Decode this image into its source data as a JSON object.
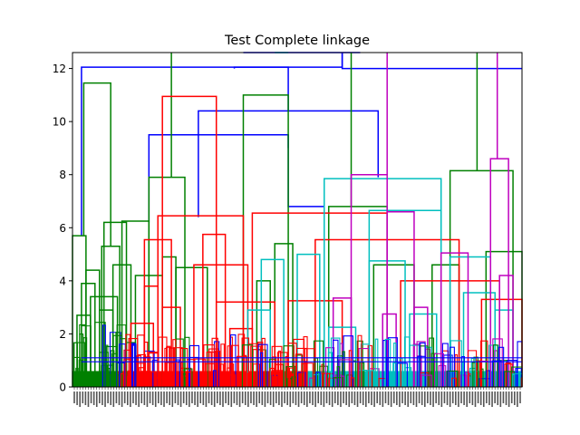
{
  "chart_data": {
    "type": "dendrogram",
    "title": "Test Complete linkage",
    "xlabel": "",
    "ylabel": "",
    "ylim": [
      0,
      12.6
    ],
    "y_ticks": [
      0,
      2,
      4,
      6,
      8,
      10,
      12
    ],
    "y_tick_labels": [
      "0",
      "2",
      "4",
      "6",
      "8",
      "10",
      "12"
    ],
    "grid": false,
    "legend": "none",
    "leaf_labels_note": "Leaf labels are rendered vertically and are too small to read individually.",
    "leaf_band_colors": [
      "#008000",
      "#ff0000",
      "#00bfbf"
    ],
    "colors": {
      "blue": "#0000ff",
      "green": "#008000",
      "red": "#ff0000",
      "cyan": "#00bfbf",
      "magenta": "#bf00bf"
    },
    "links": [
      {
        "x1": 0.02,
        "x2": 0.6,
        "h1": 5.7,
        "h2": 12.6,
        "top": 12.05,
        "color": "blue"
      },
      {
        "x1": 0.6,
        "x2": 1.0,
        "h1": 12.6,
        "h2": 12.0,
        "top": 12.0,
        "color": "blue"
      },
      {
        "x1": 0.38,
        "x2": 0.64,
        "h1": 12.6,
        "h2": 12.6,
        "top": 12.6,
        "color": "blue"
      },
      {
        "x1": 0.17,
        "x2": 0.48,
        "h1": 6.2,
        "h2": 9.0,
        "top": 9.5,
        "color": "blue"
      },
      {
        "x1": 0.28,
        "x2": 0.68,
        "h1": 6.4,
        "h2": 7.9,
        "top": 10.4,
        "color": "blue"
      },
      {
        "x1": 0.36,
        "x2": 0.48,
        "h1": 12.0,
        "h2": 10.4,
        "top": 12.05,
        "color": "blue"
      },
      {
        "x1": 0.48,
        "x2": 0.56,
        "h1": 9.5,
        "h2": 6.8,
        "top": 6.8,
        "color": "blue"
      },
      {
        "x1": 0.0,
        "x2": 0.03,
        "h1": 0.0,
        "h2": 0.0,
        "top": 5.7,
        "color": "green"
      },
      {
        "x1": 0.025,
        "x2": 0.085,
        "h1": 5.7,
        "h2": 5.3,
        "top": 11.45,
        "color": "green"
      },
      {
        "x1": 0.065,
        "x2": 0.105,
        "h1": 0.0,
        "h2": 0.0,
        "top": 5.3,
        "color": "green"
      },
      {
        "x1": 0.03,
        "x2": 0.06,
        "h1": 0.0,
        "h2": 0.0,
        "top": 4.4,
        "color": "green"
      },
      {
        "x1": 0.02,
        "x2": 0.05,
        "h1": 0.0,
        "h2": 0.0,
        "top": 3.9,
        "color": "green"
      },
      {
        "x1": 0.04,
        "x2": 0.1,
        "h1": 0.0,
        "h2": 0.0,
        "top": 3.4,
        "color": "green"
      },
      {
        "x1": 0.01,
        "x2": 0.04,
        "h1": 0.0,
        "h2": 0.0,
        "top": 2.7,
        "color": "green"
      },
      {
        "x1": 0.06,
        "x2": 0.09,
        "h1": 0.0,
        "h2": 0.0,
        "top": 2.9,
        "color": "green"
      },
      {
        "x1": 0.07,
        "x2": 0.12,
        "h1": 0.0,
        "h2": 0.0,
        "top": 6.2,
        "color": "green"
      },
      {
        "x1": 0.09,
        "x2": 0.13,
        "h1": 0.0,
        "h2": 0.0,
        "top": 4.6,
        "color": "green"
      },
      {
        "x1": 0.11,
        "x2": 0.17,
        "h1": 0.0,
        "h2": 0.0,
        "top": 6.25,
        "color": "green"
      },
      {
        "x1": 0.14,
        "x2": 0.2,
        "h1": 0.0,
        "h2": 0.0,
        "top": 4.2,
        "color": "green"
      },
      {
        "x1": 0.17,
        "x2": 0.25,
        "h1": 0.0,
        "h2": 0.0,
        "top": 7.9,
        "color": "green"
      },
      {
        "x1": 0.2,
        "x2": 0.23,
        "h1": 0.0,
        "h2": 0.0,
        "top": 4.9,
        "color": "green"
      },
      {
        "x1": 0.23,
        "x2": 0.3,
        "h1": 0.0,
        "h2": 0.0,
        "top": 4.5,
        "color": "green"
      },
      {
        "x1": 0.22,
        "x2": 0.22,
        "h1": 7.9,
        "h2": 12.6,
        "top": 12.6,
        "color": "green"
      },
      {
        "x1": 0.38,
        "x2": 0.48,
        "h1": 0.0,
        "h2": 0.0,
        "top": 11.0,
        "color": "green"
      },
      {
        "x1": 0.45,
        "x2": 0.49,
        "h1": 0.0,
        "h2": 0.0,
        "top": 5.4,
        "color": "green"
      },
      {
        "x1": 0.41,
        "x2": 0.44,
        "h1": 0.0,
        "h2": 0.0,
        "top": 4.0,
        "color": "green"
      },
      {
        "x1": 0.62,
        "x2": 0.62,
        "h1": 6.8,
        "h2": 12.6,
        "top": 12.6,
        "color": "green"
      },
      {
        "x1": 0.57,
        "x2": 0.7,
        "h1": 0.0,
        "h2": 0.0,
        "top": 6.8,
        "color": "green"
      },
      {
        "x1": 0.67,
        "x2": 0.76,
        "h1": 0.0,
        "h2": 0.0,
        "top": 4.6,
        "color": "green"
      },
      {
        "x1": 0.84,
        "x2": 0.98,
        "h1": 0.0,
        "h2": 0.0,
        "top": 8.15,
        "color": "green"
      },
      {
        "x1": 0.92,
        "x2": 1.0,
        "h1": 0.0,
        "h2": 0.0,
        "top": 5.1,
        "color": "green"
      },
      {
        "x1": 0.9,
        "x2": 0.9,
        "h1": 8.15,
        "h2": 12.6,
        "top": 12.6,
        "color": "green"
      },
      {
        "x1": 0.8,
        "x2": 0.86,
        "h1": 0.0,
        "h2": 0.0,
        "top": 4.6,
        "color": "green"
      },
      {
        "x1": 0.2,
        "x2": 0.32,
        "h1": 0.0,
        "h2": 0.0,
        "top": 10.95,
        "color": "red"
      },
      {
        "x1": 0.16,
        "x2": 0.22,
        "h1": 0.0,
        "h2": 0.0,
        "top": 5.55,
        "color": "red"
      },
      {
        "x1": 0.19,
        "x2": 0.38,
        "h1": 0.0,
        "h2": 0.0,
        "top": 6.45,
        "color": "red"
      },
      {
        "x1": 0.29,
        "x2": 0.34,
        "h1": 0.0,
        "h2": 0.0,
        "top": 5.75,
        "color": "red"
      },
      {
        "x1": 0.27,
        "x2": 0.39,
        "h1": 0.0,
        "h2": 0.0,
        "top": 4.6,
        "color": "red"
      },
      {
        "x1": 0.16,
        "x2": 0.19,
        "h1": 0.0,
        "h2": 0.0,
        "top": 3.8,
        "color": "red"
      },
      {
        "x1": 0.13,
        "x2": 0.18,
        "h1": 0.0,
        "h2": 0.0,
        "top": 2.4,
        "color": "red"
      },
      {
        "x1": 0.2,
        "x2": 0.24,
        "h1": 0.0,
        "h2": 0.0,
        "top": 3.0,
        "color": "red"
      },
      {
        "x1": 0.32,
        "x2": 0.45,
        "h1": 0.0,
        "h2": 0.0,
        "top": 3.2,
        "color": "red"
      },
      {
        "x1": 0.4,
        "x2": 0.7,
        "h1": 0.0,
        "h2": 0.0,
        "top": 6.55,
        "color": "red"
      },
      {
        "x1": 0.54,
        "x2": 0.86,
        "h1": 0.0,
        "h2": 0.0,
        "top": 5.55,
        "color": "red"
      },
      {
        "x1": 0.48,
        "x2": 0.6,
        "h1": 0.0,
        "h2": 0.0,
        "top": 3.25,
        "color": "red"
      },
      {
        "x1": 0.73,
        "x2": 0.95,
        "h1": 0.0,
        "h2": 0.0,
        "top": 4.0,
        "color": "red"
      },
      {
        "x1": 0.91,
        "x2": 1.0,
        "h1": 0.0,
        "h2": 0.0,
        "top": 3.3,
        "color": "red"
      },
      {
        "x1": 0.35,
        "x2": 0.4,
        "h1": 0.0,
        "h2": 0.0,
        "top": 2.2,
        "color": "red"
      },
      {
        "x1": 0.45,
        "x2": 0.48,
        "h1": 12.6,
        "h2": 12.6,
        "top": 12.6,
        "color": "cyan"
      },
      {
        "x1": 0.56,
        "x2": 0.82,
        "h1": 0.0,
        "h2": 0.0,
        "top": 7.85,
        "color": "cyan"
      },
      {
        "x1": 0.66,
        "x2": 0.82,
        "h1": 0.0,
        "h2": 0.0,
        "top": 6.65,
        "color": "cyan"
      },
      {
        "x1": 0.42,
        "x2": 0.47,
        "h1": 0.0,
        "h2": 0.0,
        "top": 4.8,
        "color": "cyan"
      },
      {
        "x1": 0.5,
        "x2": 0.55,
        "h1": 0.0,
        "h2": 0.0,
        "top": 5.0,
        "color": "cyan"
      },
      {
        "x1": 0.66,
        "x2": 0.74,
        "h1": 0.0,
        "h2": 0.0,
        "top": 4.75,
        "color": "cyan"
      },
      {
        "x1": 0.75,
        "x2": 0.81,
        "h1": 0.0,
        "h2": 0.0,
        "top": 2.75,
        "color": "cyan"
      },
      {
        "x1": 0.84,
        "x2": 0.93,
        "h1": 0.0,
        "h2": 0.0,
        "top": 4.9,
        "color": "cyan"
      },
      {
        "x1": 0.87,
        "x2": 0.94,
        "h1": 0.0,
        "h2": 0.0,
        "top": 3.55,
        "color": "cyan"
      },
      {
        "x1": 0.94,
        "x2": 0.98,
        "h1": 0.0,
        "h2": 0.0,
        "top": 2.9,
        "color": "cyan"
      },
      {
        "x1": 0.57,
        "x2": 0.63,
        "h1": 0.0,
        "h2": 0.0,
        "top": 2.25,
        "color": "cyan"
      },
      {
        "x1": 0.39,
        "x2": 0.44,
        "h1": 0.0,
        "h2": 0.0,
        "top": 2.9,
        "color": "cyan"
      },
      {
        "x1": 0.62,
        "x2": 0.7,
        "h1": 0.0,
        "h2": 0.0,
        "top": 8.0,
        "color": "magenta"
      },
      {
        "x1": 0.7,
        "x2": 0.7,
        "h1": 8.0,
        "h2": 12.6,
        "top": 12.6,
        "color": "magenta"
      },
      {
        "x1": 0.7,
        "x2": 0.76,
        "h1": 0.0,
        "h2": 0.0,
        "top": 6.6,
        "color": "magenta"
      },
      {
        "x1": 0.82,
        "x2": 0.88,
        "h1": 0.0,
        "h2": 0.0,
        "top": 5.05,
        "color": "magenta"
      },
      {
        "x1": 0.93,
        "x2": 0.97,
        "h1": 0.0,
        "h2": 0.0,
        "top": 8.6,
        "color": "magenta"
      },
      {
        "x1": 0.945,
        "x2": 0.945,
        "h1": 8.6,
        "h2": 12.6,
        "top": 12.6,
        "color": "magenta"
      },
      {
        "x1": 0.58,
        "x2": 0.62,
        "h1": 0.0,
        "h2": 0.0,
        "top": 3.35,
        "color": "magenta"
      },
      {
        "x1": 0.69,
        "x2": 0.72,
        "h1": 0.0,
        "h2": 0.0,
        "top": 2.75,
        "color": "magenta"
      },
      {
        "x1": 0.76,
        "x2": 0.79,
        "h1": 0.0,
        "h2": 0.0,
        "top": 3.0,
        "color": "magenta"
      },
      {
        "x1": 0.95,
        "x2": 0.98,
        "h1": 0.0,
        "h2": 0.0,
        "top": 4.2,
        "color": "magenta"
      }
    ]
  }
}
